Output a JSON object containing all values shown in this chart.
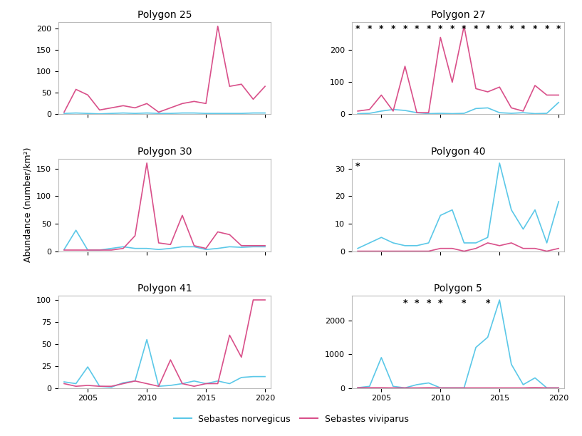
{
  "subplots": [
    {
      "title": "Polygon 25",
      "years": [
        2003,
        2004,
        2005,
        2006,
        2007,
        2008,
        2009,
        2010,
        2011,
        2012,
        2013,
        2014,
        2015,
        2016,
        2017,
        2018,
        2019,
        2020
      ],
      "norvegicus": [
        2,
        3,
        2,
        1,
        2,
        3,
        2,
        3,
        2,
        2,
        3,
        3,
        2,
        2,
        2,
        2,
        3,
        3
      ],
      "viviparus": [
        5,
        58,
        45,
        10,
        15,
        20,
        15,
        25,
        5,
        15,
        25,
        30,
        25,
        205,
        65,
        70,
        35,
        65
      ],
      "stars": []
    },
    {
      "title": "Polygon 27",
      "years": [
        2003,
        2004,
        2005,
        2006,
        2007,
        2008,
        2009,
        2010,
        2011,
        2012,
        2013,
        2014,
        2015,
        2016,
        2017,
        2018,
        2019,
        2020
      ],
      "norvegicus": [
        2,
        3,
        10,
        15,
        12,
        5,
        2,
        3,
        2,
        3,
        18,
        20,
        5,
        3,
        5,
        2,
        3,
        37
      ],
      "viviparus": [
        10,
        15,
        60,
        10,
        150,
        5,
        5,
        240,
        100,
        275,
        80,
        70,
        85,
        20,
        10,
        90,
        60,
        60
      ],
      "stars": [
        2003,
        2004,
        2005,
        2006,
        2007,
        2008,
        2009,
        2010,
        2011,
        2012,
        2013,
        2014,
        2015,
        2016,
        2017,
        2018,
        2019,
        2020
      ]
    },
    {
      "title": "Polygon 30",
      "years": [
        2003,
        2004,
        2005,
        2006,
        2007,
        2008,
        2009,
        2010,
        2011,
        2012,
        2013,
        2014,
        2015,
        2016,
        2017,
        2018,
        2019,
        2020
      ],
      "norvegicus": [
        3,
        38,
        2,
        2,
        5,
        8,
        5,
        5,
        3,
        5,
        8,
        8,
        3,
        5,
        8,
        7,
        8,
        8
      ],
      "viviparus": [
        2,
        2,
        2,
        2,
        2,
        5,
        28,
        160,
        15,
        12,
        65,
        10,
        5,
        35,
        30,
        10,
        10,
        10
      ],
      "stars": []
    },
    {
      "title": "Polygon 40",
      "years": [
        2003,
        2004,
        2005,
        2006,
        2007,
        2008,
        2009,
        2010,
        2011,
        2012,
        2013,
        2014,
        2015,
        2016,
        2017,
        2018,
        2019,
        2020
      ],
      "norvegicus": [
        1,
        3,
        5,
        3,
        2,
        2,
        3,
        13,
        15,
        3,
        3,
        5,
        32,
        15,
        8,
        15,
        3,
        18
      ],
      "viviparus": [
        0,
        0,
        0,
        0,
        0,
        0,
        0,
        1,
        1,
        0,
        1,
        3,
        2,
        3,
        1,
        1,
        0,
        1
      ],
      "stars": [
        2003
      ]
    },
    {
      "title": "Polygon 41",
      "years": [
        2003,
        2004,
        2005,
        2006,
        2007,
        2008,
        2009,
        2010,
        2011,
        2012,
        2013,
        2014,
        2015,
        2016,
        2017,
        2018,
        2019,
        2020
      ],
      "norvegicus": [
        7,
        5,
        24,
        2,
        1,
        6,
        8,
        55,
        2,
        3,
        5,
        8,
        5,
        8,
        5,
        12,
        13,
        13
      ],
      "viviparus": [
        5,
        2,
        3,
        2,
        2,
        5,
        8,
        5,
        2,
        32,
        5,
        2,
        5,
        5,
        60,
        35,
        100,
        100
      ],
      "stars": []
    },
    {
      "title": "Polygon 5",
      "years": [
        2003,
        2004,
        2005,
        2006,
        2007,
        2008,
        2009,
        2010,
        2011,
        2012,
        2013,
        2014,
        2015,
        2016,
        2017,
        2018,
        2019,
        2020
      ],
      "norvegicus": [
        10,
        50,
        900,
        50,
        5,
        100,
        150,
        5,
        5,
        5,
        1200,
        1500,
        2600,
        700,
        100,
        300,
        5,
        5
      ],
      "viviparus": [
        10,
        10,
        10,
        5,
        5,
        5,
        10,
        5,
        5,
        5,
        5,
        5,
        5,
        5,
        5,
        15,
        5,
        5
      ],
      "stars": [
        2007,
        2008,
        2009,
        2010,
        2012,
        2014
      ]
    }
  ],
  "color_norvegicus": "#5bc8e8",
  "color_viviparus": "#d9508a",
  "ylabel": "Abundance (number/km²)",
  "legend_norvegicus": "Sebastes norvegicus",
  "legend_viviparus": "Sebastes viviparus"
}
